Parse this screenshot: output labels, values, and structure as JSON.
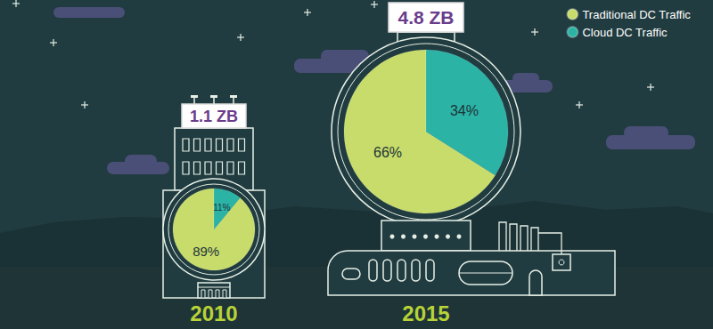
{
  "chart_data": [
    {
      "type": "pie",
      "title": "2010",
      "annotation": "1.1 ZB",
      "categories": [
        "Traditional DC Traffic",
        "Cloud DC Traffic"
      ],
      "values": [
        89,
        11
      ],
      "value_labels": [
        "89%",
        "11%"
      ],
      "colors": [
        "#c8dc6c",
        "#2bb3a6"
      ],
      "data_labels": true
    },
    {
      "type": "pie",
      "title": "2015",
      "annotation": "4.8 ZB",
      "categories": [
        "Traditional DC Traffic",
        "Cloud DC Traffic"
      ],
      "values": [
        66,
        34
      ],
      "value_labels": [
        "66%",
        "34%"
      ],
      "colors": [
        "#c8dc6c",
        "#2bb3a6"
      ],
      "data_labels": true,
      "legend": "top right"
    }
  ]
}
